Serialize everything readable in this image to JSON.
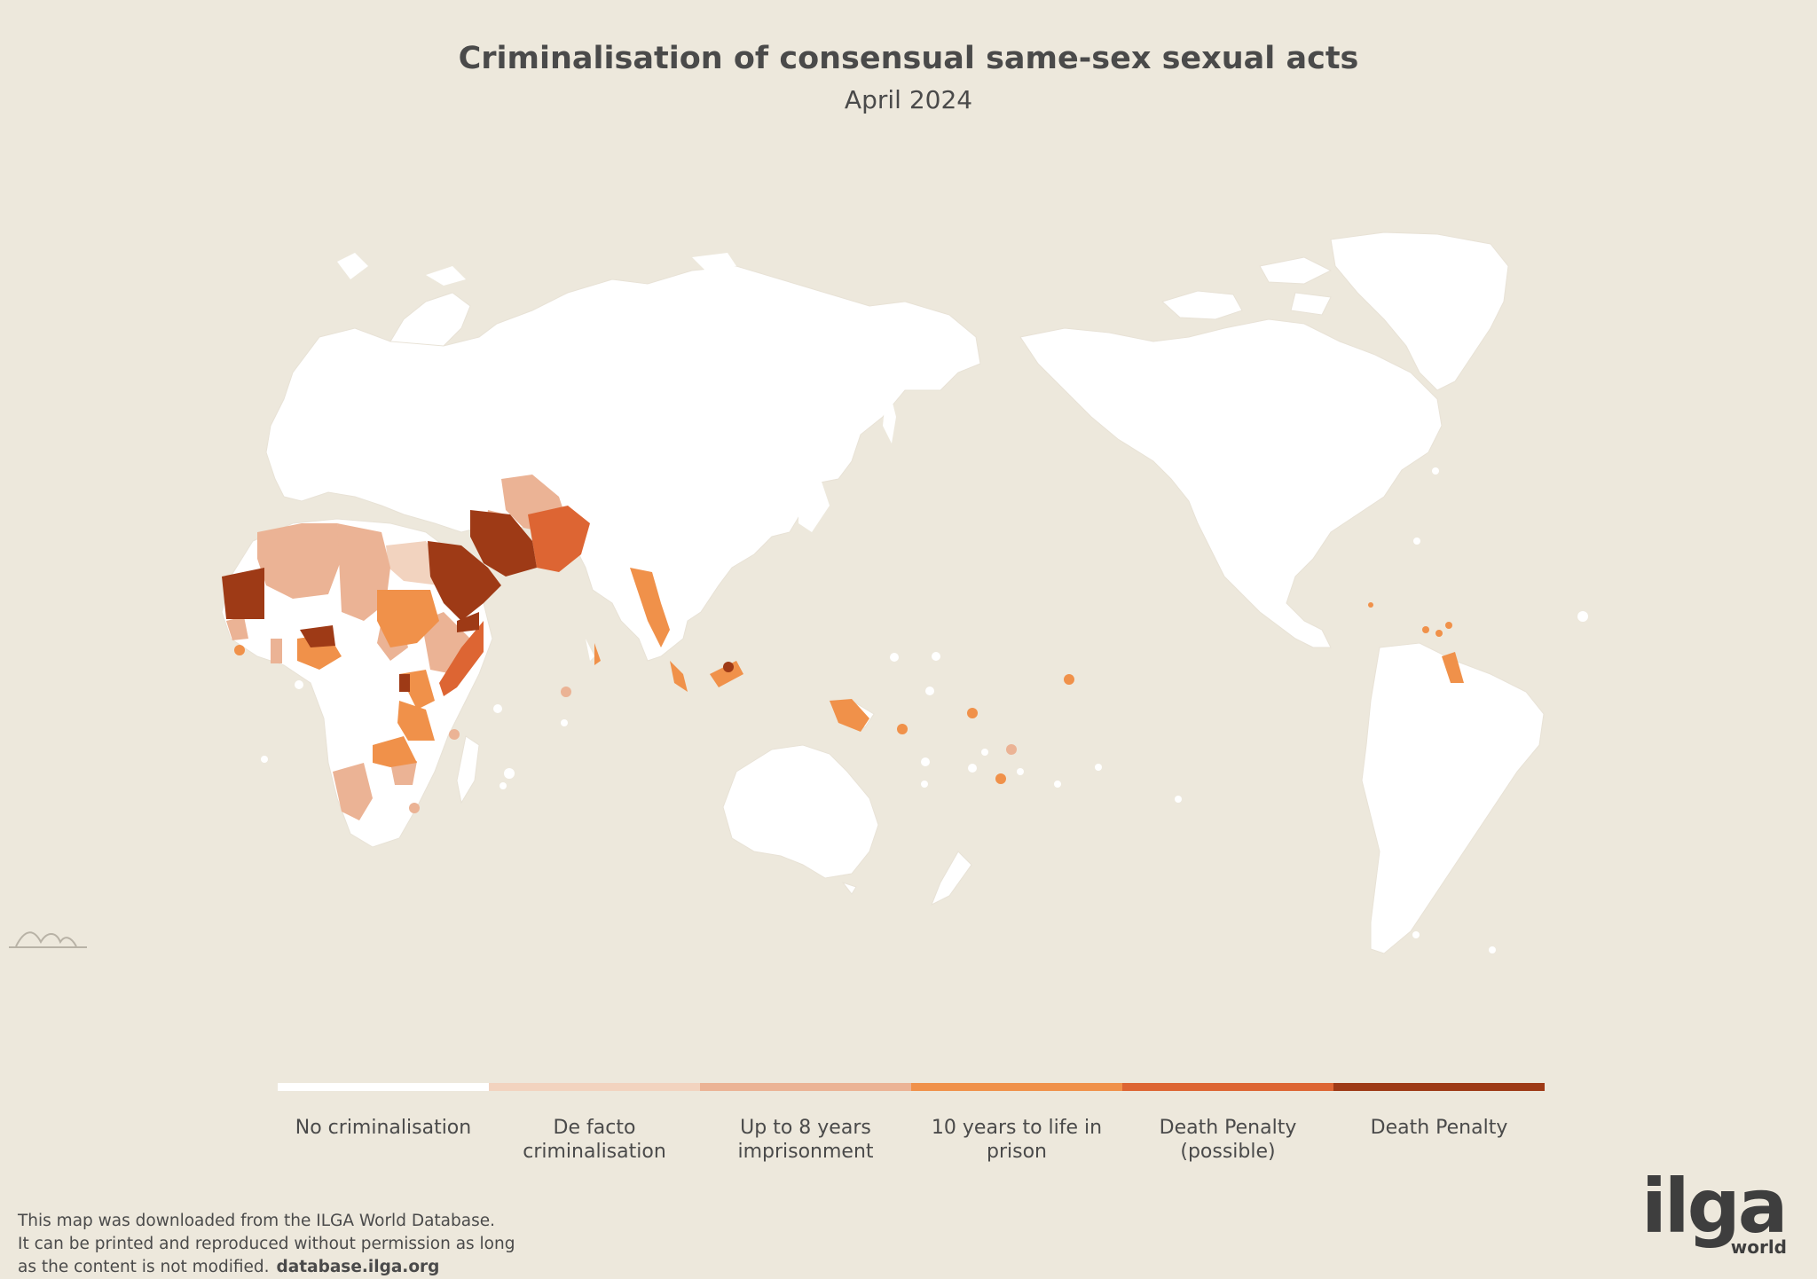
{
  "header": {
    "title": "Criminalisation of consensual same-sex sexual acts",
    "subtitle": "April 2024"
  },
  "colors": {
    "background": "#ede8dc",
    "land": "#ffffff",
    "no_criminalisation": "#ffffff",
    "de_facto": "#f2d3bf",
    "up_to_8_years": "#ebb395",
    "ten_years_to_life": "#f0914a",
    "death_penalty_possible": "#dd6533",
    "death_penalty": "#9e3a16"
  },
  "legend": {
    "items": [
      {
        "label": "No criminalisation",
        "color": "#ffffff"
      },
      {
        "label": "De facto criminalisation",
        "color": "#f2d3bf"
      },
      {
        "label": "Up to 8 years imprisonment",
        "color": "#ebb395"
      },
      {
        "label": "10 years to life in prison",
        "color": "#f0914a"
      },
      {
        "label": "Death Penalty (possible)",
        "color": "#dd6533"
      },
      {
        "label": "Death Penalty",
        "color": "#9e3a16"
      }
    ]
  },
  "footer": {
    "line1": "This map was downloaded from the ILGA World Database.",
    "line2": "It can be printed and reproduced without permission as long",
    "line3": "as the content is not modified.",
    "link": "database.ilga.org"
  },
  "logo": {
    "main": "ilga",
    "sub": "world"
  },
  "icons": {
    "scale": "terrain-scale-icon"
  }
}
